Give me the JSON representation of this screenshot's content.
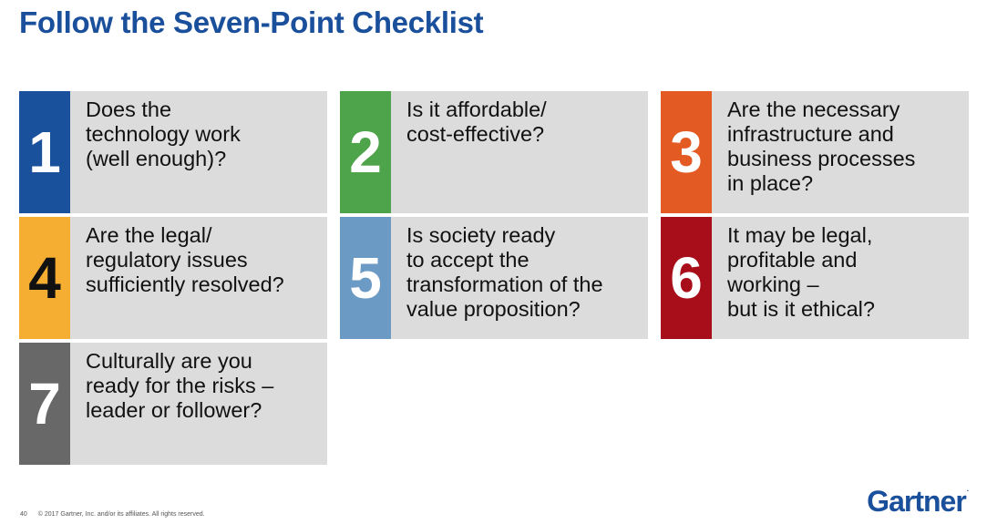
{
  "title": "Follow the Seven-Point Checklist",
  "colors": {
    "title": "#1a4f9c",
    "card_text_bg": "#dcdcdc",
    "brand": "#1a4f9c"
  },
  "cards": [
    {
      "number": "1",
      "color": "#1a519d",
      "number_color": "#ffffff",
      "lines": [
        "Does the",
        "technology work",
        "(well enough)?"
      ]
    },
    {
      "number": "2",
      "color": "#4ea44a",
      "number_color": "#ffffff",
      "lines": [
        "Is it affordable/",
        "cost-effective?"
      ]
    },
    {
      "number": "3",
      "color": "#e35a22",
      "number_color": "#ffffff",
      "lines": [
        "Are the necessary",
        "infrastructure and",
        "business processes",
        "in place?"
      ]
    },
    {
      "number": "4",
      "color": "#f6ae32",
      "number_color": "#111111",
      "lines": [
        "Are the legal/",
        "regulatory issues",
        "sufficiently resolved?"
      ]
    },
    {
      "number": "5",
      "color": "#6b9ac4",
      "number_color": "#ffffff",
      "lines": [
        "Is society ready",
        "to accept the",
        "transformation of the",
        "value proposition?"
      ]
    },
    {
      "number": "6",
      "color": "#a70e1a",
      "number_color": "#ffffff",
      "lines": [
        "It may be legal,",
        "profitable and",
        "working –",
        "but is it ethical?"
      ]
    },
    {
      "number": "7",
      "color": "#686868",
      "number_color": "#ffffff",
      "lines": [
        "Culturally are you",
        "ready for the risks –",
        "leader or follower?"
      ]
    }
  ],
  "footer": {
    "page_number": "40",
    "copyright": "© 2017 Gartner, Inc. and/or its affiliates. All rights reserved."
  },
  "logo": {
    "text": "Gartner",
    "mark": "."
  }
}
